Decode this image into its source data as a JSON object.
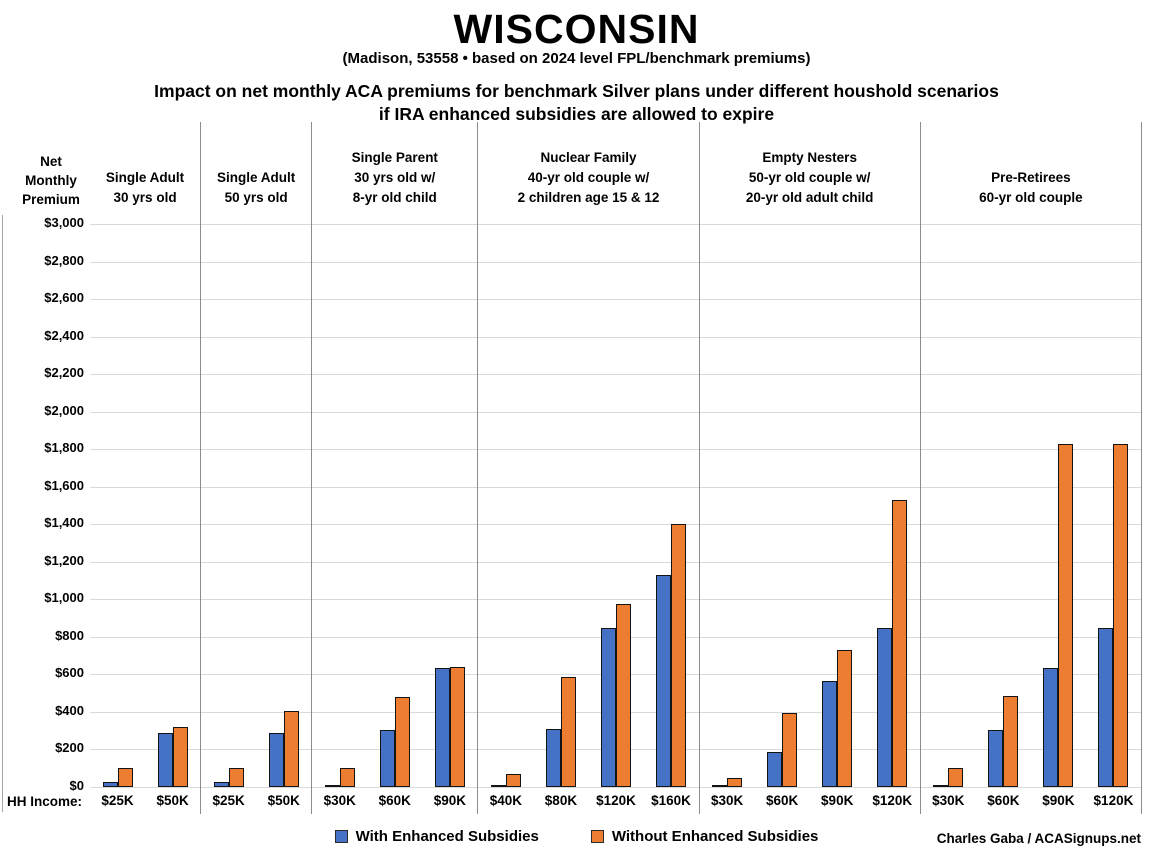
{
  "header": {
    "title": "WISCONSIN",
    "subtitle": "(Madison, 53558 • based on 2024 level FPL/benchmark premiums)",
    "chart_title_line1": "Impact on net monthly ACA premiums for benchmark Silver plans under different houshold scenarios",
    "chart_title_line2": "if IRA enhanced subsidies are allowed to expire"
  },
  "axis": {
    "y_label_lines": [
      "Net",
      "Monthly",
      "Premium"
    ],
    "x_label": "HH Income:"
  },
  "legend": [
    {
      "name": "With Enhanced Subsidies",
      "color": "#4472C4"
    },
    {
      "name": "Without Enhanced Subsidies",
      "color": "#ED7D31"
    }
  ],
  "credit": "Charles Gaba / ACASignups.net",
  "chart_data": {
    "type": "bar",
    "title": "Impact on net monthly ACA premiums for benchmark Silver plans under different houshold scenarios if IRA enhanced subsidies are allowed to expire",
    "ylabel": "Net Monthly Premium",
    "xlabel": "HH Income",
    "ylim": [
      0,
      3000
    ],
    "ytick_step": 200,
    "grid": true,
    "legend_position": "bottom",
    "series_names": [
      "With Enhanced Subsidies",
      "Without Enhanced Subsidies"
    ],
    "series_colors": [
      "#4472C4",
      "#ED7D31"
    ],
    "groups": [
      {
        "label_lines": [
          "Single Adult",
          "30 yrs old"
        ],
        "categories": [
          "$25K",
          "$50K"
        ],
        "series": [
          {
            "name": "With Enhanced Subsidies",
            "values": [
              25,
              290
            ]
          },
          {
            "name": "Without Enhanced Subsidies",
            "values": [
              100,
              320
            ]
          }
        ]
      },
      {
        "label_lines": [
          "Single Adult",
          "50 yrs old"
        ],
        "categories": [
          "$25K",
          "$50K"
        ],
        "series": [
          {
            "name": "With Enhanced Subsidies",
            "values": [
              25,
              290
            ]
          },
          {
            "name": "Without Enhanced Subsidies",
            "values": [
              100,
              405
            ]
          }
        ]
      },
      {
        "label_lines": [
          "Single Parent",
          "30 yrs old w/",
          "8-yr old child"
        ],
        "categories": [
          "$30K",
          "$60K",
          "$90K"
        ],
        "series": [
          {
            "name": "With Enhanced Subsidies",
            "values": [
              10,
              305,
              635
            ]
          },
          {
            "name": "Without Enhanced Subsidies",
            "values": [
              100,
              480,
              640
            ]
          }
        ]
      },
      {
        "label_lines": [
          "Nuclear Family",
          "40-yr old couple w/",
          "2 children age 15 & 12"
        ],
        "categories": [
          "$40K",
          "$80K",
          "$120K",
          "$160K"
        ],
        "series": [
          {
            "name": "With Enhanced Subsidies",
            "values": [
              5,
              310,
              845,
              1130
            ]
          },
          {
            "name": "Without Enhanced Subsidies",
            "values": [
              70,
              585,
              975,
              1400
            ]
          }
        ]
      },
      {
        "label_lines": [
          "Empty Nesters",
          "50-yr old couple w/",
          "20-yr old adult child"
        ],
        "categories": [
          "$30K",
          "$60K",
          "$90K",
          "$120K"
        ],
        "series": [
          {
            "name": "With Enhanced Subsidies",
            "values": [
              0,
              185,
              565,
              845
            ]
          },
          {
            "name": "Without Enhanced Subsidies",
            "values": [
              50,
              395,
              730,
              1530
            ]
          }
        ]
      },
      {
        "label_lines": [
          "Pre-Retirees",
          "60-yr old couple"
        ],
        "categories": [
          "$30K",
          "$60K",
          "$90K",
          "$120K"
        ],
        "series": [
          {
            "name": "With Enhanced Subsidies",
            "values": [
              10,
              305,
              635,
              845
            ]
          },
          {
            "name": "Without Enhanced Subsidies",
            "values": [
              100,
              485,
              1830,
              1830
            ]
          }
        ]
      }
    ]
  }
}
